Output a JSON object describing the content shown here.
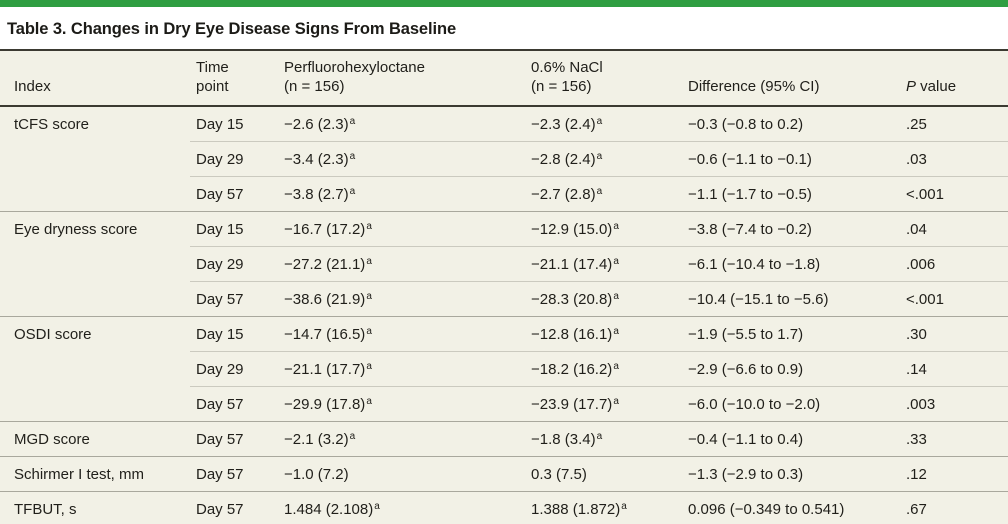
{
  "accent_color": "#2f9e41",
  "table_background_color": "#f2f1e6",
  "title": "Table 3. Changes in Dry Eye Disease Signs From Baseline",
  "table": {
    "headers": {
      "index": "Index",
      "time": [
        "Time",
        "point"
      ],
      "pfh": [
        "Perfluorohexyloctane",
        "(n = 156)"
      ],
      "nacl": [
        "0.6% NaCl",
        "(n = 156)"
      ],
      "difference": "Difference (95% CI)",
      "p": {
        "italic": "P",
        "rest": " value"
      }
    },
    "footnote_marker": "a",
    "groups": [
      {
        "index": "tCFS score",
        "rows": [
          {
            "time": "Day 15",
            "pfh": {
              "text": "−2.6 (2.3)",
              "sup": "a"
            },
            "nacl": {
              "text": "−2.3 (2.4)",
              "sup": "a"
            },
            "diff": "−0.3 (−0.8 to 0.2)",
            "p": ".25"
          },
          {
            "time": "Day 29",
            "pfh": {
              "text": "−3.4 (2.3)",
              "sup": "a"
            },
            "nacl": {
              "text": "−2.8 (2.4)",
              "sup": "a"
            },
            "diff": "−0.6 (−1.1 to −0.1)",
            "p": ".03"
          },
          {
            "time": "Day 57",
            "pfh": {
              "text": "−3.8 (2.7)",
              "sup": "a"
            },
            "nacl": {
              "text": "−2.7 (2.8)",
              "sup": "a"
            },
            "diff": "−1.1 (−1.7 to −0.5)",
            "p": "<.001"
          }
        ]
      },
      {
        "index": "Eye dryness score",
        "rows": [
          {
            "time": "Day 15",
            "pfh": {
              "text": "−16.7 (17.2)",
              "sup": "a"
            },
            "nacl": {
              "text": "−12.9 (15.0)",
              "sup": "a"
            },
            "diff": "−3.8 (−7.4 to −0.2)",
            "p": ".04"
          },
          {
            "time": "Day 29",
            "pfh": {
              "text": "−27.2 (21.1)",
              "sup": "a"
            },
            "nacl": {
              "text": "−21.1 (17.4)",
              "sup": "a"
            },
            "diff": "−6.1 (−10.4 to −1.8)",
            "p": ".006"
          },
          {
            "time": "Day 57",
            "pfh": {
              "text": "−38.6 (21.9)",
              "sup": "a"
            },
            "nacl": {
              "text": "−28.3 (20.8)",
              "sup": "a"
            },
            "diff": "−10.4 (−15.1 to −5.6)",
            "p": "<.001"
          }
        ]
      },
      {
        "index": "OSDI score",
        "rows": [
          {
            "time": "Day 15",
            "pfh": {
              "text": "−14.7 (16.5)",
              "sup": "a"
            },
            "nacl": {
              "text": "−12.8 (16.1)",
              "sup": "a"
            },
            "diff": "−1.9 (−5.5 to 1.7)",
            "p": ".30"
          },
          {
            "time": "Day 29",
            "pfh": {
              "text": "−21.1 (17.7)",
              "sup": "a"
            },
            "nacl": {
              "text": "−18.2 (16.2)",
              "sup": "a"
            },
            "diff": "−2.9 (−6.6 to 0.9)",
            "p": ".14"
          },
          {
            "time": "Day 57",
            "pfh": {
              "text": "−29.9 (17.8)",
              "sup": "a"
            },
            "nacl": {
              "text": "−23.9 (17.7)",
              "sup": "a"
            },
            "diff": "−6.0 (−10.0 to −2.0)",
            "p": ".003"
          }
        ]
      },
      {
        "index": "MGD score",
        "rows": [
          {
            "time": "Day 57",
            "pfh": {
              "text": "−2.1 (3.2)",
              "sup": "a"
            },
            "nacl": {
              "text": "−1.8 (3.4)",
              "sup": "a"
            },
            "diff": "−0.4 (−1.1 to 0.4)",
            "p": ".33"
          }
        ]
      },
      {
        "index": "Schirmer I test, mm",
        "rows": [
          {
            "time": "Day 57",
            "pfh": {
              "text": "−1.0 (7.2)",
              "sup": ""
            },
            "nacl": {
              "text": "0.3 (7.5)",
              "sup": ""
            },
            "diff": "−1.3 (−2.9 to 0.3)",
            "p": ".12"
          }
        ]
      },
      {
        "index": "TFBUT, s",
        "rows": [
          {
            "time": "Day 57",
            "pfh": {
              "text": "1.484 (2.108)",
              "sup": "a"
            },
            "nacl": {
              "text": "1.388 (1.872)",
              "sup": "a"
            },
            "diff": "0.096 (−0.349 to 0.541)",
            "p": ".67"
          }
        ]
      }
    ]
  }
}
